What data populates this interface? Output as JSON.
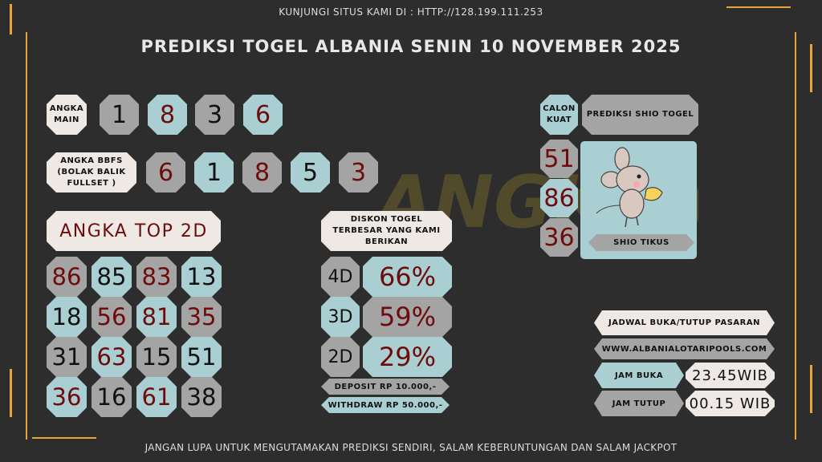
{
  "header": {
    "visit": "KUNJUNGI SITUS KAMI DI : HTTP://128.199.111.253",
    "title": "PREDIKSI TOGEL ALBANIA SENIN 10 NOVEMBER 2025"
  },
  "angka_main": {
    "label": "ANGKA MAIN",
    "digits": [
      "1",
      "8",
      "3",
      "6"
    ]
  },
  "bbfs": {
    "label": "ANGKA BBFS (BOLAK BALIK FULLSET )",
    "digits": [
      "6",
      "1",
      "8",
      "5",
      "3"
    ]
  },
  "top2d": {
    "title": "ANGKA TOP 2D",
    "rows": [
      [
        "86",
        "85",
        "83",
        "13"
      ],
      [
        "18",
        "56",
        "81",
        "35"
      ],
      [
        "31",
        "63",
        "15",
        "51"
      ],
      [
        "36",
        "16",
        "61",
        "38"
      ]
    ]
  },
  "diskon": {
    "title": "DISKON TOGEL TERBESAR YANG KAMI BERIKAN",
    "items": [
      {
        "label": "4D",
        "value": "66%"
      },
      {
        "label": "3D",
        "value": "59%"
      },
      {
        "label": "2D",
        "value": "29%"
      }
    ],
    "deposit": "DEPOSIT RP 10.000,-",
    "withdraw": "WITHDRAW RP 50.000,-"
  },
  "shio": {
    "calon_label": "CALON KUAT",
    "title": "PREDIKSI SHIO TOGEL",
    "numbers": [
      "51",
      "86",
      "36"
    ],
    "name": "SHIO TIKUS",
    "icon": "mouse-illustration"
  },
  "jadwal": {
    "title": "JADWAL BUKA/TUTUP PASARAN",
    "url": "WWW.ALBANIALOTARIPOOLS.COM",
    "buka_label": "JAM BUKA",
    "buka_value": "23.45WIB",
    "tutup_label": "JAM TUTUP",
    "tutup_value": "00.15 WIB"
  },
  "watermark": "ANGKA GAIB",
  "footer": "JANGAN LUPA UNTUK MENGUTAMAKAN PREDIKSI SENDIRI, SALAM KEBERUNTUNGAN DAN SALAM JACKPOT",
  "colors": {
    "background": "#2d2d2d",
    "gray": "#a4a4a4",
    "blue": "#a9cfd3",
    "cream": "#efe9e6",
    "red": "#6e0b0b",
    "gold": "#e6a536"
  }
}
